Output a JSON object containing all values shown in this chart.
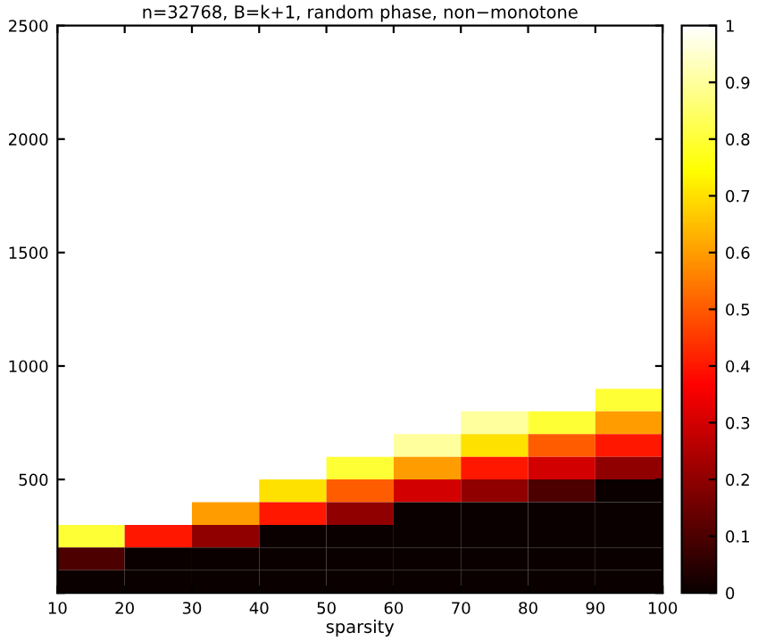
{
  "chart_data": {
    "type": "heatmap",
    "title": "n=32768, B=k+1, random phase, non−monotone",
    "xlabel": "sparsity",
    "x": [
      15,
      25,
      35,
      45,
      55,
      65,
      75,
      85,
      95
    ],
    "y": [
      950,
      850,
      750,
      650,
      550,
      450,
      350,
      250,
      150,
      50
    ],
    "cells": [
      [
        null,
        null,
        null,
        null,
        null,
        null,
        null,
        null,
        1.0
      ],
      [
        null,
        null,
        null,
        null,
        null,
        null,
        null,
        1.0,
        0.8
      ],
      [
        null,
        null,
        null,
        null,
        null,
        null,
        0.9,
        0.8,
        0.6
      ],
      [
        null,
        null,
        null,
        null,
        null,
        0.9,
        0.7,
        0.5,
        0.4
      ],
      [
        null,
        null,
        null,
        1.0,
        0.8,
        0.6,
        0.4,
        0.3,
        0.2
      ],
      [
        null,
        null,
        1.0,
        0.7,
        0.5,
        0.3,
        0.2,
        0.1,
        0.0
      ],
      [
        null,
        1.0,
        0.6,
        0.4,
        0.2,
        0.0,
        0.0,
        0.0,
        0.0
      ],
      [
        0.8,
        0.4,
        0.2,
        0.0,
        0.0,
        0.0,
        0.0,
        0.0,
        0.0
      ],
      [
        0.1,
        0.0,
        0.0,
        0.0,
        0.0,
        0.0,
        0.0,
        0.0,
        0.0
      ],
      [
        0.0,
        0.0,
        0.0,
        0.0,
        0.0,
        0.0,
        0.0,
        0.0,
        0.0
      ]
    ],
    "xlim": [
      10,
      100
    ],
    "xticks": [
      10,
      20,
      30,
      40,
      50,
      60,
      70,
      80,
      90,
      100
    ],
    "ylim": [
      0,
      2500
    ],
    "yticks": [
      {
        "value": 0,
        "label": null
      },
      500,
      1000,
      1500,
      2000,
      2500
    ],
    "clim": [
      0,
      1
    ],
    "cticks": [
      0,
      0.1,
      0.2,
      0.3,
      0.4,
      0.5,
      0.6,
      0.7,
      0.8,
      0.9,
      1
    ]
  }
}
